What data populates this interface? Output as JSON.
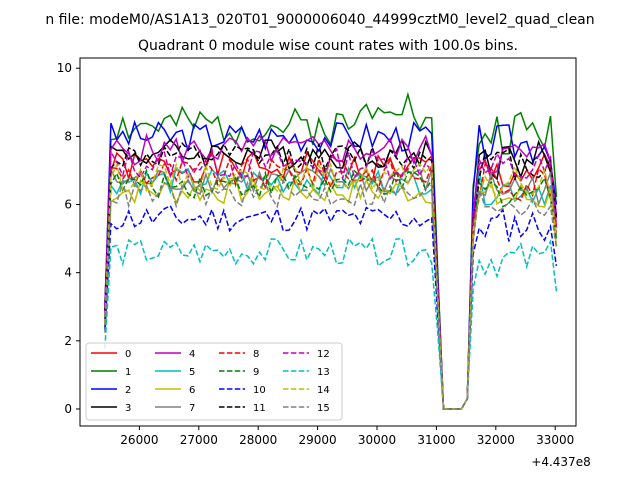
{
  "chart_data": {
    "type": "line",
    "suptitle": "n file: modeM0/AS1A13_020T01_9000006040_44999cztM0_level2_quad_clean",
    "title": "Quadrant 0 module wise count rates with 100.0s bins.",
    "xlabel": "",
    "ylabel": "",
    "x_offset_label": "+4.437e8",
    "xlim": [
      25000,
      33350
    ],
    "ylim": [
      -0.5,
      10.3
    ],
    "x_ticks": [
      26000,
      27000,
      28000,
      29000,
      30000,
      31000,
      32000,
      33000
    ],
    "x_tick_labels": [
      "26000",
      "27000",
      "28000",
      "29000",
      "30000",
      "31000",
      "32000",
      "33000"
    ],
    "y_ticks": [
      0,
      2,
      4,
      6,
      8,
      10
    ],
    "y_tick_labels": [
      "0",
      "2",
      "4",
      "6",
      "8",
      "10"
    ],
    "grid": false,
    "legend_placement": "lower-left",
    "legend_columns": 4,
    "series": [
      {
        "name": "0",
        "color": "#ff0000",
        "dash": "solid",
        "base": 7.1,
        "amp": 0.45,
        "seed": 1
      },
      {
        "name": "1",
        "color": "#008000",
        "dash": "solid",
        "base": 8.3,
        "amp": 0.55,
        "seed": 2
      },
      {
        "name": "2",
        "color": "#0000ff",
        "dash": "solid",
        "base": 8.0,
        "amp": 0.45,
        "seed": 3
      },
      {
        "name": "3",
        "color": "#000000",
        "dash": "solid",
        "base": 7.5,
        "amp": 0.45,
        "seed": 4
      },
      {
        "name": "4",
        "color": "#bf00bf",
        "dash": "solid",
        "base": 7.6,
        "amp": 0.45,
        "seed": 5
      },
      {
        "name": "5",
        "color": "#00bfbf",
        "dash": "solid",
        "base": 6.7,
        "amp": 0.4,
        "seed": 6
      },
      {
        "name": "6",
        "color": "#bfbf00",
        "dash": "solid",
        "base": 6.4,
        "amp": 0.4,
        "seed": 7
      },
      {
        "name": "7",
        "color": "#808080",
        "dash": "solid",
        "base": 6.7,
        "amp": 0.4,
        "seed": 8
      },
      {
        "name": "8",
        "color": "#ff0000",
        "dash": "dashed",
        "base": 6.9,
        "amp": 0.45,
        "seed": 9
      },
      {
        "name": "9",
        "color": "#008000",
        "dash": "dashed",
        "base": 6.6,
        "amp": 0.4,
        "seed": 10
      },
      {
        "name": "10",
        "color": "#0000ff",
        "dash": "dashed",
        "base": 5.6,
        "amp": 0.4,
        "seed": 11
      },
      {
        "name": "11",
        "color": "#000000",
        "dash": "dashed",
        "base": 7.4,
        "amp": 0.4,
        "seed": 12
      },
      {
        "name": "12",
        "color": "#bf00bf",
        "dash": "dashed",
        "base": 7.2,
        "amp": 0.45,
        "seed": 13
      },
      {
        "name": "13",
        "color": "#00bfbf",
        "dash": "dashed",
        "base": 4.6,
        "amp": 0.4,
        "seed": 14
      },
      {
        "name": "14",
        "color": "#bfbf00",
        "dash": "dashed",
        "base": 6.8,
        "amp": 0.4,
        "seed": 15
      },
      {
        "name": "15",
        "color": "#808080",
        "dash": "dashed",
        "base": 6.3,
        "amp": 0.4,
        "seed": 16
      }
    ]
  }
}
